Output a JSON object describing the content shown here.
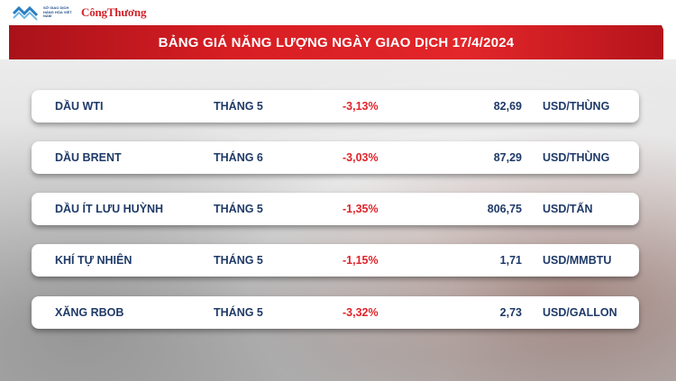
{
  "header": {
    "logo_small_text": "SỞ GIAO DỊCH HÀNG HÓA VIỆT NAM",
    "brand": "CôngThương",
    "title": "BẢNG GIÁ NĂNG LƯỢNG NGÀY GIAO DỊCH 17/4/2024"
  },
  "colors": {
    "banner_red": "#d81e23",
    "text_navy": "#1f3a68",
    "negative_red": "#e0242a"
  },
  "rows": [
    {
      "name": "DẦU WTI",
      "month": "THÁNG 5",
      "change": "-3,13%",
      "price": "82,69",
      "unit": "USD/THÙNG"
    },
    {
      "name": "DẦU BRENT",
      "month": "THÁNG 6",
      "change": "-3,03%",
      "price": "87,29",
      "unit": "USD/THÙNG"
    },
    {
      "name": "DẦU ÍT LƯU HUỲNH",
      "month": "THÁNG 5",
      "change": "-1,35%",
      "price": "806,75",
      "unit": "USD/TẤN"
    },
    {
      "name": "KHÍ TỰ NHIÊN",
      "month": "THÁNG 5",
      "change": "-1,15%",
      "price": "1,71",
      "unit": "USD/MMBTU"
    },
    {
      "name": "XĂNG RBOB",
      "month": "THÁNG 5",
      "change": "-3,32%",
      "price": "2,73",
      "unit": "USD/GALLON"
    }
  ]
}
